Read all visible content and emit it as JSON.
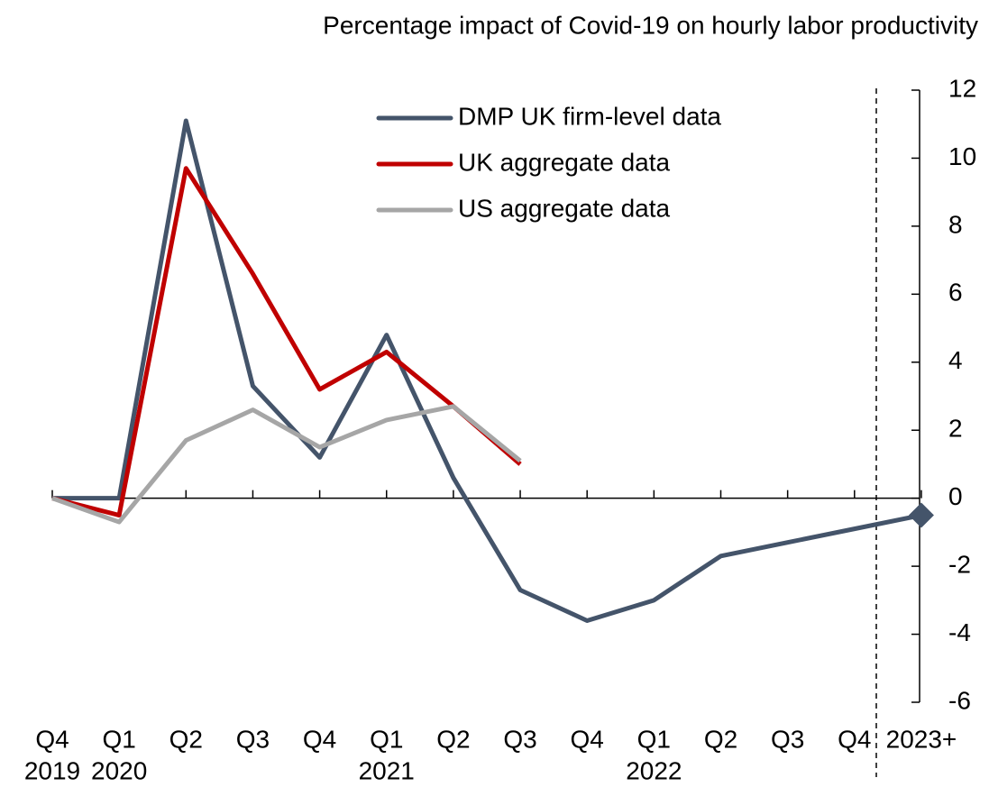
{
  "chart_data": {
    "type": "line",
    "title": "Percentage impact of Covid-19 on hourly labor productivity",
    "categories": [
      "Q4",
      "Q1",
      "Q2",
      "Q3",
      "Q4",
      "Q1",
      "Q2",
      "Q3",
      "Q4",
      "Q1",
      "Q2",
      "Q3",
      "Q4",
      "2023+"
    ],
    "category_years": [
      "2019",
      "2020",
      null,
      null,
      null,
      "2021",
      null,
      null,
      null,
      "2022",
      null,
      null,
      null,
      null
    ],
    "series": [
      {
        "name": "DMP UK firm-level data",
        "color": "#44546a",
        "values": [
          0,
          0,
          11.1,
          3.3,
          1.2,
          4.8,
          0.6,
          -2.7,
          -3.6,
          -3.0,
          -1.7,
          -1.3,
          -0.9,
          -0.5
        ],
        "last_point_marker": "diamond"
      },
      {
        "name": "UK aggregate data",
        "color": "#c00000",
        "values": [
          0,
          -0.5,
          9.7,
          6.6,
          3.2,
          4.3,
          2.7,
          1.0,
          null,
          null,
          null,
          null,
          null,
          null
        ]
      },
      {
        "name": "US aggregate data",
        "color": "#a6a6a6",
        "values": [
          0,
          -0.7,
          1.7,
          2.6,
          1.5,
          2.3,
          2.7,
          1.1,
          null,
          null,
          null,
          null,
          null,
          null
        ]
      }
    ],
    "ylim": [
      -6,
      12
    ],
    "yticks": [
      -6,
      -4,
      -2,
      0,
      2,
      4,
      6,
      8,
      10,
      12
    ],
    "yaxis_side": "right",
    "grid": false
  }
}
